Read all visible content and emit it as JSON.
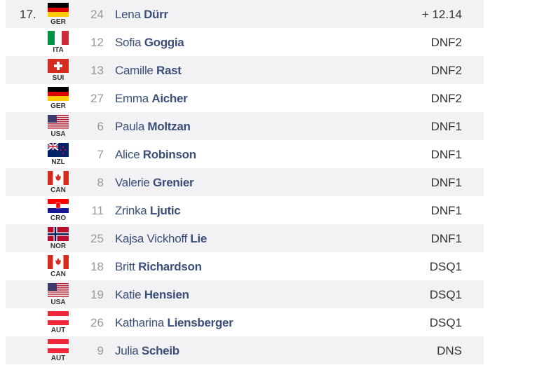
{
  "table": {
    "rows": [
      {
        "rank": "17.",
        "country": "GER",
        "bib": 24,
        "first": "Lena",
        "last": "Dürr",
        "result": "+ 12.14"
      },
      {
        "country": "ITA",
        "bib": 12,
        "first": "Sofia",
        "last": "Goggia",
        "result": "DNF2"
      },
      {
        "country": "SUI",
        "bib": 13,
        "first": "Camille",
        "last": "Rast",
        "result": "DNF2"
      },
      {
        "country": "GER",
        "bib": 27,
        "first": "Emma",
        "last": "Aicher",
        "result": "DNF2"
      },
      {
        "country": "USA",
        "bib": 6,
        "first": "Paula",
        "last": "Moltzan",
        "result": "DNF1"
      },
      {
        "country": "NZL",
        "bib": 7,
        "first": "Alice",
        "last": "Robinson",
        "result": "DNF1"
      },
      {
        "country": "CAN",
        "bib": 8,
        "first": "Valerie",
        "last": "Grenier",
        "result": "DNF1"
      },
      {
        "country": "CRO",
        "bib": 11,
        "first": "Zrinka",
        "last": "Ljutic",
        "result": "DNF1"
      },
      {
        "country": "NOR",
        "bib": 25,
        "first": "Kajsa Vickhoff",
        "last": "Lie",
        "result": "DNF1"
      },
      {
        "country": "CAN",
        "bib": 18,
        "first": "Britt",
        "last": "Richardson",
        "result": "DSQ1"
      },
      {
        "country": "USA",
        "bib": 19,
        "first": "Katie",
        "last": "Hensien",
        "result": "DSQ1"
      },
      {
        "country": "AUT",
        "bib": 26,
        "first": "Katharina",
        "last": "Liensberger",
        "result": "DSQ1"
      },
      {
        "country": "AUT",
        "bib": 9,
        "first": "Julia",
        "last": "Scheib",
        "result": "DNS"
      }
    ]
  }
}
